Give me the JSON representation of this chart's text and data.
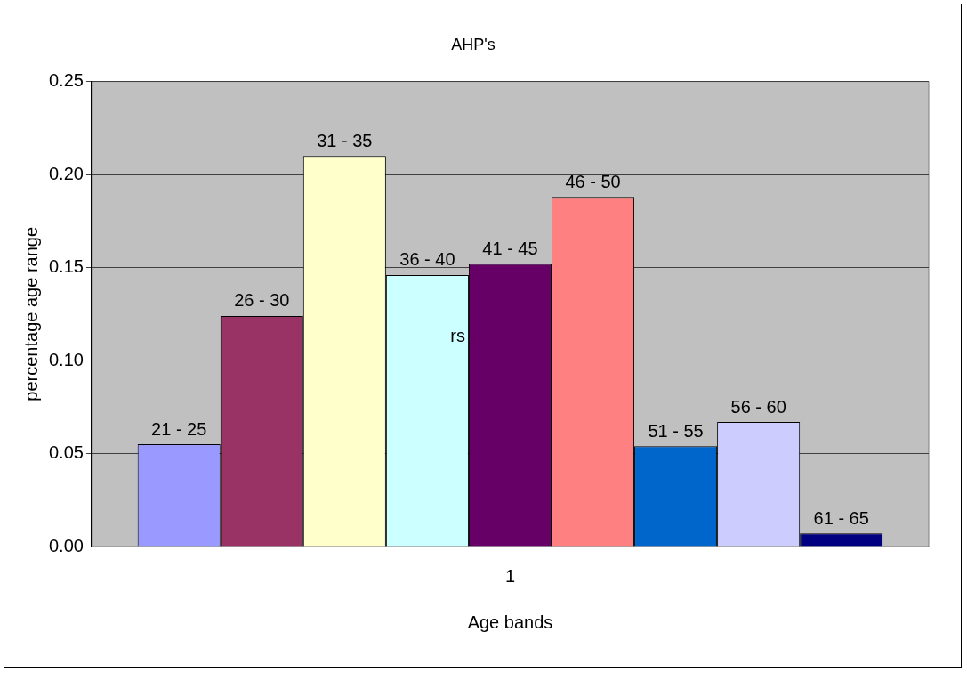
{
  "chart_data": {
    "type": "bar",
    "title": "AHP's",
    "xlabel": "Age bands",
    "ylabel": "percentage age range",
    "categories": [
      "1"
    ],
    "series": [
      {
        "name": "21 - 25",
        "color": "#9999ff",
        "values": [
          0.055
        ]
      },
      {
        "name": "26 - 30",
        "color": "#993366",
        "values": [
          0.124
        ]
      },
      {
        "name": "31 - 35",
        "color": "#ffffcc",
        "values": [
          0.21
        ]
      },
      {
        "name": "36 - 40",
        "color": "#ccffff",
        "values": [
          0.146
        ]
      },
      {
        "name": "41 - 45",
        "color": "#660066",
        "values": [
          0.152
        ]
      },
      {
        "name": "46 - 50",
        "color": "#ff8080",
        "values": [
          0.188
        ]
      },
      {
        "name": "51 - 55",
        "color": "#0066cc",
        "values": [
          0.054
        ]
      },
      {
        "name": "56 - 60",
        "color": "#ccccff",
        "values": [
          0.067
        ]
      },
      {
        "name": "61 - 65",
        "color": "#000080",
        "values": [
          0.007
        ]
      }
    ],
    "ylim": [
      0,
      0.25
    ],
    "yticks": [
      {
        "value": 0,
        "label": "0.00"
      },
      {
        "value": 0.05,
        "label": "0.05"
      },
      {
        "value": 0.1,
        "label": "0.10"
      },
      {
        "value": 0.15,
        "label": "0.15"
      },
      {
        "value": 0.2,
        "label": "0.20"
      },
      {
        "value": 0.25,
        "label": "0.25"
      }
    ],
    "grid": "y",
    "legend": false,
    "annotations": [
      "rs"
    ]
  }
}
